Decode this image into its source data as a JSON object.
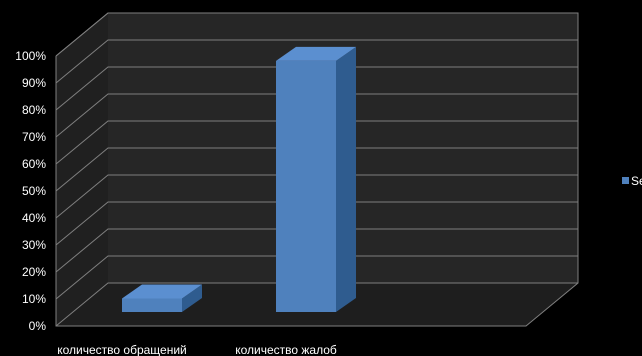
{
  "chart_data": {
    "type": "bar",
    "categories": [
      "количество обращений",
      "количество жалоб"
    ],
    "series": [
      {
        "name": "Se",
        "values": [
          5,
          93
        ],
        "color": "#4f81bd"
      }
    ],
    "y_ticks": [
      "0%",
      "10%",
      "20%",
      "30%",
      "40%",
      "50%",
      "60%",
      "70%",
      "80%",
      "90%",
      "100%"
    ],
    "ylim": [
      0,
      100
    ],
    "grid": true,
    "legend_position": "right",
    "style": "3d-column",
    "background_color": "#000000",
    "wall_color": "#262626",
    "gridline_color": "#7f7f7f"
  }
}
